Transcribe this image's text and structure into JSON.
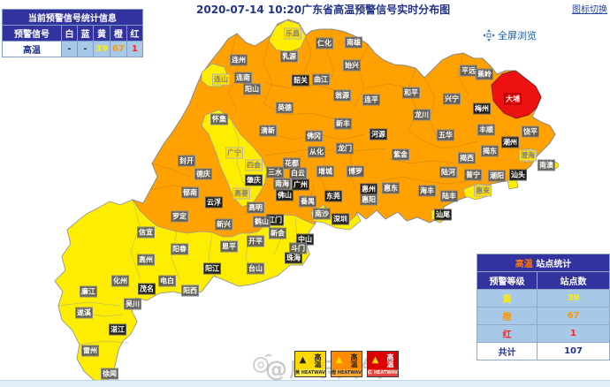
{
  "title": "2020-07-14 10:20广东省高温预警信号实时分布图",
  "links": {
    "legend_toggle": "图标切换",
    "fullscreen": "全屏浏览"
  },
  "stats_table": {
    "title": "当前预警信号统计信息",
    "col_signal": "预警信号",
    "headers": [
      "白",
      "蓝",
      "黄",
      "橙",
      "红"
    ],
    "row_label": "高温",
    "values": [
      "-",
      "-",
      "39",
      "67",
      "1"
    ]
  },
  "site_table": {
    "title_hot": "高温",
    "title_rest": " 站点统计",
    "col_level": "预警等级",
    "col_count": "站点数",
    "rows": [
      {
        "level": "黄",
        "count": "39",
        "cls": "t-yellow"
      },
      {
        "level": "橙",
        "count": "67",
        "cls": "t-orange"
      },
      {
        "level": "红",
        "count": "1",
        "cls": "t-red"
      }
    ],
    "total_label": "共计",
    "total": "107"
  },
  "colors": {
    "warning_yellow": "#ffed00",
    "warning_orange": "#ffa101",
    "warning_red": "#ee1111",
    "table_blue": "#3333a0",
    "cell_blue": "#a8c8e8",
    "title_navy": "#223388",
    "link_blue": "#1a5fa8"
  },
  "map": {
    "labels": [
      [
        "乐昌",
        331,
        38,
        "y"
      ],
      [
        "仁化",
        367,
        49,
        ""
      ],
      [
        "南雄",
        400,
        48,
        ""
      ],
      [
        "连州",
        270,
        68,
        ""
      ],
      [
        "乳源",
        327,
        64,
        ""
      ],
      [
        "始兴",
        398,
        74,
        ""
      ],
      [
        "连山",
        250,
        90,
        "y"
      ],
      [
        "连南",
        275,
        88,
        ""
      ],
      [
        "阳山",
        285,
        101,
        ""
      ],
      [
        "韶关",
        340,
        91,
        "c"
      ],
      [
        "曲江",
        363,
        90,
        ""
      ],
      [
        "翁源",
        387,
        108,
        ""
      ],
      [
        "英德",
        322,
        122,
        ""
      ],
      [
        "新丰",
        388,
        140,
        ""
      ],
      [
        "清新",
        303,
        148,
        ""
      ],
      [
        "佛冈",
        355,
        154,
        ""
      ],
      [
        "连平",
        420,
        113,
        ""
      ],
      [
        "和平",
        465,
        105,
        ""
      ],
      [
        "平远",
        530,
        80,
        ""
      ],
      [
        "蕉岭",
        548,
        84,
        ""
      ],
      [
        "兴宁",
        511,
        112,
        ""
      ],
      [
        "大埔",
        580,
        112,
        "r"
      ],
      [
        "梅州",
        545,
        123,
        "c"
      ],
      [
        "龙川",
        477,
        130,
        ""
      ],
      [
        "河源",
        428,
        152,
        "c"
      ],
      [
        "五华",
        504,
        153,
        ""
      ],
      [
        "丰顺",
        550,
        147,
        ""
      ],
      [
        "饶平",
        600,
        149,
        ""
      ],
      [
        "潮州",
        577,
        161,
        "c"
      ],
      [
        "揭东",
        554,
        171,
        ""
      ],
      [
        "揭西",
        528,
        179,
        ""
      ],
      [
        "澄海",
        597,
        176,
        "y"
      ],
      [
        "南澳",
        618,
        187,
        ""
      ],
      [
        "紫金",
        453,
        175,
        ""
      ],
      [
        "陆河",
        507,
        195,
        ""
      ],
      [
        "普宁",
        535,
        198,
        ""
      ],
      [
        "潮阳",
        562,
        199,
        ""
      ],
      [
        "汕头",
        586,
        198,
        "c"
      ],
      [
        "龙门",
        390,
        168,
        ""
      ],
      [
        "从化",
        358,
        172,
        ""
      ],
      [
        "花都",
        330,
        185,
        ""
      ],
      [
        "增城",
        368,
        194,
        ""
      ],
      [
        "博罗",
        402,
        194,
        ""
      ],
      [
        "白云",
        337,
        196,
        ""
      ],
      [
        "广州",
        340,
        209,
        "c"
      ],
      [
        "南海",
        319,
        208,
        ""
      ],
      [
        "三水",
        311,
        195,
        ""
      ],
      [
        "佛山",
        322,
        221,
        "c"
      ],
      [
        "番禺",
        348,
        228,
        ""
      ],
      [
        "东莞",
        377,
        222,
        "c"
      ],
      [
        "惠州",
        417,
        214,
        "c"
      ],
      [
        "惠阳",
        417,
        226,
        ""
      ],
      [
        "惠东",
        442,
        213,
        ""
      ],
      [
        "海丰",
        483,
        216,
        ""
      ],
      [
        "陆丰",
        508,
        222,
        ""
      ],
      [
        "惠来",
        546,
        216,
        "y"
      ],
      [
        "汕尾",
        501,
        243,
        "c"
      ],
      [
        "深圳",
        385,
        248,
        "c"
      ],
      [
        "南沙",
        364,
        242,
        ""
      ],
      [
        "中山",
        345,
        271,
        "c"
      ],
      [
        "珠海",
        332,
        292,
        "c"
      ],
      [
        "斗门",
        337,
        281,
        ""
      ],
      [
        "新会",
        314,
        264,
        ""
      ],
      [
        "江门",
        311,
        249,
        "c"
      ],
      [
        "怀集",
        248,
        135,
        ""
      ],
      [
        "广宁",
        265,
        173,
        "y"
      ],
      [
        "四会",
        287,
        187,
        "y"
      ],
      [
        "封开",
        211,
        182,
        ""
      ],
      [
        "德庆",
        230,
        197,
        ""
      ],
      [
        "郁南",
        215,
        218,
        ""
      ],
      [
        "肇庆",
        287,
        204,
        "c"
      ],
      [
        "高要",
        273,
        219,
        "y"
      ],
      [
        "云浮",
        242,
        229,
        "c"
      ],
      [
        "罗定",
        203,
        245,
        ""
      ],
      [
        "新兴",
        253,
        254,
        ""
      ],
      [
        "高明",
        289,
        235,
        ""
      ],
      [
        "鹤山",
        296,
        251,
        ""
      ],
      [
        "开平",
        289,
        273,
        ""
      ],
      [
        "恩平",
        259,
        279,
        ""
      ],
      [
        "台山",
        289,
        304,
        ""
      ],
      [
        "阳江",
        240,
        304,
        "c"
      ],
      [
        "阳西",
        215,
        329,
        ""
      ],
      [
        "阳春",
        203,
        282,
        ""
      ],
      [
        "信宜",
        165,
        263,
        ""
      ],
      [
        "高州",
        165,
        294,
        ""
      ],
      [
        "化州",
        136,
        318,
        ""
      ],
      [
        "茂名",
        166,
        327,
        "c"
      ],
      [
        "电白",
        189,
        318,
        ""
      ],
      [
        "廉江",
        100,
        330,
        ""
      ],
      [
        "吴川",
        150,
        344,
        ""
      ],
      [
        "遂溪",
        95,
        354,
        ""
      ],
      [
        "湛江",
        133,
        373,
        "c"
      ],
      [
        "雷州",
        102,
        397,
        ""
      ],
      [
        "徐闻",
        124,
        423,
        ""
      ]
    ]
  },
  "badges": [
    {
      "arrow": "▲",
      "text": "高温",
      "strip": "黄 HEATWAVE",
      "level": "yellow"
    },
    {
      "arrow": "▲",
      "text": "高温",
      "strip": "橙 HEATWAVE",
      "level": "orange"
    },
    {
      "arrow": "▲",
      "text": "高温",
      "strip": "红 HEATWAVE",
      "level": "red"
    }
  ],
  "watermark": "@广东天气"
}
